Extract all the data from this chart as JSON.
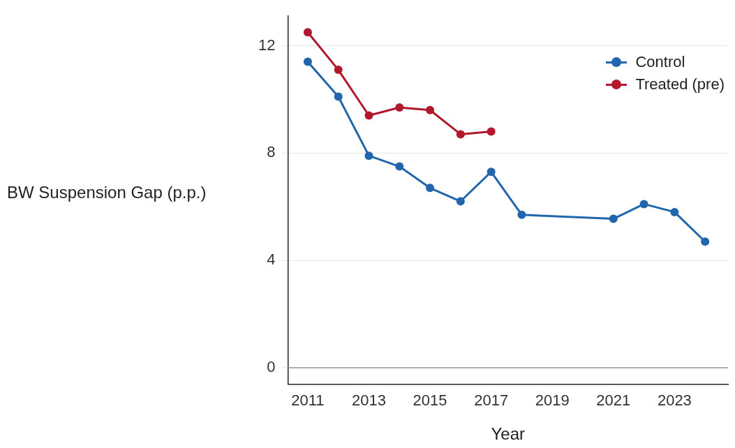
{
  "chart_data": {
    "type": "line",
    "xlabel": "Year",
    "ylabel": "BW Suspension Gap (p.p.)",
    "series": [
      {
        "name": "Control",
        "color": "#2166ac",
        "x": [
          2011,
          2012,
          2013,
          2014,
          2015,
          2016,
          2017,
          2018,
          2021,
          2022,
          2023,
          2024
        ],
        "values": [
          11.4,
          10.1,
          7.9,
          7.5,
          6.7,
          6.2,
          7.3,
          5.7,
          5.55,
          6.1,
          5.8,
          4.7
        ]
      },
      {
        "name": "Treated (pre)",
        "color": "#b2182b",
        "x": [
          2011,
          2012,
          2013,
          2014,
          2015,
          2016,
          2017
        ],
        "values": [
          12.5,
          11.1,
          9.4,
          9.7,
          9.6,
          8.7,
          8.8
        ]
      }
    ],
    "xlim": [
      2010.35,
      2024.75
    ],
    "xticks": [
      2011,
      2013,
      2015,
      2017,
      2019,
      2021,
      2023
    ],
    "ylim": [
      -0.62,
      13.1
    ],
    "yticks": [
      0,
      4,
      8,
      12
    ],
    "ref_lines": [
      {
        "axis": "y",
        "value": 0,
        "color": "#999999"
      }
    ],
    "grid": "y",
    "legend": "top right",
    "marker": "circle",
    "line_style": "solid"
  }
}
